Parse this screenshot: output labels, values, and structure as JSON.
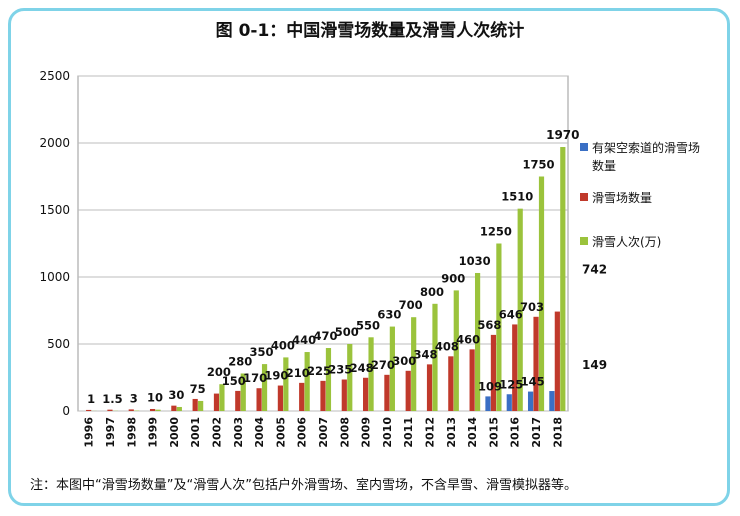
{
  "title": "图 0-1：中国滑雪场数量及滑雪人次统计",
  "note": "注：本图中“滑雪场数量”及“滑雪人次”包括户外滑雪场、室内雪场，不含旱雪、滑雪模拟器等。",
  "colors": {
    "lifts": "#3a6fc4",
    "resorts": "#c0392b",
    "visits": "#9bc33c",
    "border": "#7fd3e8"
  },
  "chart_data": {
    "type": "bar",
    "title": "图 0-1：中国滑雪场数量及滑雪人次统计",
    "categories": [
      "1996",
      "1997",
      "1998",
      "1999",
      "2000",
      "2001",
      "2002",
      "2003",
      "2004",
      "2005",
      "2006",
      "2007",
      "2008",
      "2009",
      "2010",
      "2011",
      "2012",
      "2013",
      "2014",
      "2015",
      "2016",
      "2017",
      "2018"
    ],
    "ylim": [
      0,
      2500
    ],
    "yticks": [
      0,
      500,
      1000,
      1500,
      2000,
      2500
    ],
    "grid": true,
    "legend_position": "right",
    "series": [
      {
        "name": "有架空索道的滑雪场数量",
        "color": "#3a6fc4",
        "values": [
          0,
          0,
          0,
          0,
          0,
          0,
          0,
          0,
          0,
          0,
          0,
          0,
          0,
          0,
          0,
          0,
          0,
          0,
          0,
          109,
          125,
          145,
          149
        ],
        "labels": [
          "",
          "",
          "",
          "",
          "",
          "",
          "",
          "",
          "",
          "",
          "",
          "",
          "",
          "",
          "",
          "",
          "",
          "",
          "",
          "109",
          "125",
          "145",
          "149"
        ]
      },
      {
        "name": "滑雪场数量",
        "color": "#c0392b",
        "values": [
          8,
          10,
          12,
          15,
          40,
          90,
          130,
          150,
          170,
          190,
          210,
          225,
          235,
          248,
          270,
          300,
          348,
          408,
          460,
          568,
          646,
          703,
          742
        ],
        "labels": [
          "",
          "",
          "",
          "",
          "",
          "",
          "",
          "150",
          "170",
          "190",
          "210",
          "225",
          "235",
          "248",
          "270",
          "300",
          "348",
          "408",
          "460",
          "568",
          "646",
          "703",
          "742"
        ]
      },
      {
        "name": "滑雪人次(万)",
        "color": "#9bc33c",
        "values": [
          1,
          1.5,
          3,
          10,
          30,
          75,
          200,
          280,
          350,
          400,
          440,
          470,
          500,
          550,
          630,
          700,
          800,
          900,
          1030,
          1250,
          1510,
          1750,
          1970
        ],
        "labels": [
          "1",
          "1.5",
          "3",
          "10",
          "30",
          "75",
          "200",
          "280",
          "350",
          "400",
          "440",
          "470",
          "500",
          "550",
          "630",
          "700",
          "800",
          "900",
          "1030",
          "1250",
          "1510",
          "1750",
          "1970"
        ]
      }
    ]
  }
}
